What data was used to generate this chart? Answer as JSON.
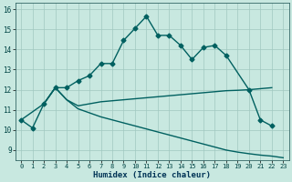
{
  "xlabel": "Humidex (Indice chaleur)",
  "background_color": "#c8e8e0",
  "grid_color": "#a0c8c0",
  "line_color": "#006060",
  "xlim": [
    -0.5,
    23.5
  ],
  "ylim": [
    8.5,
    16.3
  ],
  "yticks": [
    9,
    10,
    11,
    12,
    13,
    14,
    15,
    16
  ],
  "xticks": [
    0,
    1,
    2,
    3,
    4,
    5,
    6,
    7,
    8,
    9,
    10,
    11,
    12,
    13,
    14,
    15,
    16,
    17,
    18,
    19,
    20,
    21,
    22,
    23
  ],
  "curve1_x": [
    0,
    1,
    2,
    3,
    4,
    5,
    6,
    7,
    8,
    9,
    10,
    11,
    12,
    13,
    14,
    15,
    16,
    17,
    18,
    20,
    21,
    22
  ],
  "curve1_y": [
    10.5,
    10.1,
    11.3,
    12.1,
    12.1,
    12.45,
    12.7,
    13.3,
    13.3,
    14.45,
    15.05,
    15.65,
    14.7,
    14.7,
    14.2,
    13.5,
    14.1,
    14.2,
    13.7,
    12.0,
    10.5,
    10.2
  ],
  "curve2_x": [
    0,
    2,
    3,
    4,
    5,
    6,
    7,
    8,
    9,
    10,
    11,
    12,
    13,
    14,
    15,
    16,
    17,
    18,
    19,
    20,
    21,
    22
  ],
  "curve2_y": [
    10.5,
    11.3,
    12.1,
    11.5,
    11.2,
    11.3,
    11.4,
    11.45,
    11.5,
    11.55,
    11.6,
    11.65,
    11.7,
    11.75,
    11.8,
    11.85,
    11.9,
    11.95,
    11.97,
    12.0,
    12.05,
    12.1
  ],
  "curve3_x": [
    2,
    3,
    4,
    5,
    6,
    7,
    8,
    9,
    10,
    11,
    12,
    13,
    14,
    15,
    16,
    17,
    18,
    19,
    20,
    21,
    22,
    23
  ],
  "curve3_y": [
    11.3,
    12.1,
    11.5,
    11.05,
    10.85,
    10.65,
    10.5,
    10.35,
    10.2,
    10.05,
    9.9,
    9.75,
    9.6,
    9.45,
    9.3,
    9.15,
    9.0,
    8.9,
    8.82,
    8.75,
    8.7,
    8.62
  ],
  "line_width": 1.0,
  "marker_size": 2.5
}
